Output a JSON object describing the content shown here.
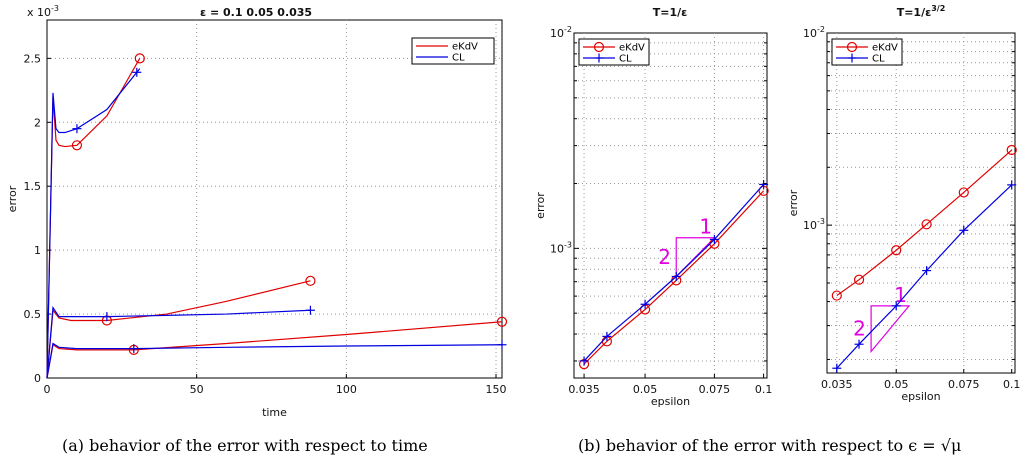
{
  "chart_data": [
    {
      "type": "line",
      "title": "ε  =  0.1       0.05      0.035",
      "xlabel": "time",
      "ylabel": "error",
      "y_multiplier": "x 10^-3",
      "xlim": [
        0,
        152
      ],
      "ylim": [
        0,
        2.8
      ],
      "xticks": [
        "0",
        "50",
        "100",
        "150"
      ],
      "yticks": [
        "0",
        "0.5",
        "1",
        "1.5",
        "2",
        "2.5"
      ],
      "grid": true,
      "legend": [
        "eKdV",
        "CL"
      ],
      "legend_position": "top-right",
      "series": [
        {
          "name": "eKdV",
          "color": "#e00000",
          "epsilon": "0.1",
          "x": [
            0,
            2,
            3,
            4,
            6,
            10,
            20,
            31
          ],
          "y": [
            0,
            2.2,
            1.86,
            1.82,
            1.81,
            1.82,
            2.05,
            2.5
          ]
        },
        {
          "name": "CL",
          "color": "#0000e0",
          "epsilon": "0.1",
          "x": [
            0,
            2,
            3,
            4,
            6,
            10,
            20,
            31
          ],
          "y": [
            0,
            2.23,
            1.95,
            1.92,
            1.92,
            1.95,
            2.1,
            2.42
          ]
        },
        {
          "name": "eKdV",
          "color": "#e00000",
          "epsilon": "0.05",
          "x": [
            0,
            2,
            4,
            8,
            20,
            40,
            60,
            88
          ],
          "y": [
            0,
            0.53,
            0.47,
            0.45,
            0.45,
            0.5,
            0.6,
            0.76
          ]
        },
        {
          "name": "CL",
          "color": "#0000e0",
          "epsilon": "0.05",
          "x": [
            0,
            2,
            4,
            8,
            20,
            40,
            60,
            88
          ],
          "y": [
            0,
            0.55,
            0.48,
            0.48,
            0.48,
            0.49,
            0.5,
            0.53
          ]
        },
        {
          "name": "eKdV",
          "color": "#e00000",
          "epsilon": "0.035",
          "x": [
            0,
            2,
            4,
            10,
            29,
            60,
            100,
            152
          ],
          "y": [
            0,
            0.26,
            0.23,
            0.22,
            0.22,
            0.27,
            0.34,
            0.44
          ]
        },
        {
          "name": "CL",
          "color": "#0000e0",
          "epsilon": "0.035",
          "x": [
            0,
            2,
            4,
            10,
            29,
            60,
            100,
            152
          ],
          "y": [
            0,
            0.27,
            0.24,
            0.23,
            0.23,
            0.24,
            0.25,
            0.26
          ]
        }
      ],
      "markers": [
        {
          "series": 0,
          "x": [
            10,
            31
          ]
        },
        {
          "series": 1,
          "x": [
            10,
            30
          ]
        },
        {
          "series": 2,
          "x": [
            20,
            88
          ]
        },
        {
          "series": 3,
          "x": [
            20,
            88
          ]
        },
        {
          "series": 4,
          "x": [
            29,
            152
          ]
        },
        {
          "series": 5,
          "x": [
            29,
            152
          ]
        }
      ]
    },
    {
      "type": "line",
      "title": "T=1/ε",
      "xlabel": "epsilon",
      "ylabel": "error",
      "x_scale": "log",
      "y_scale": "log",
      "xlim": [
        0.033,
        0.102
      ],
      "ylim": [
        0.00025,
        0.01
      ],
      "xticks": [
        "0.035",
        "0.05",
        "0.075",
        "0.1"
      ],
      "yticks": [
        "10^-3",
        "10^-2"
      ],
      "grid": true,
      "legend": [
        "eKdV",
        "CL"
      ],
      "legend_position": "top-left",
      "series": [
        {
          "name": "eKdV",
          "color": "#e00000",
          "marker": "circle",
          "x": [
            0.035,
            0.04,
            0.05,
            0.06,
            0.075,
            0.1
          ],
          "y": [
            0.00029,
            0.00037,
            0.00052,
            0.00071,
            0.00105,
            0.00185
          ]
        },
        {
          "name": "CL",
          "color": "#0000e0",
          "marker": "plus",
          "x": [
            0.035,
            0.04,
            0.05,
            0.06,
            0.075,
            0.1
          ],
          "y": [
            0.0003,
            0.00039,
            0.00055,
            0.00074,
            0.0011,
            0.00198
          ]
        }
      ],
      "slope_triangle": {
        "run_label": "1",
        "rise_label": "2",
        "x": [
          0.06,
          0.075
        ],
        "y_bottom": 0.00074,
        "y_top": 0.00112
      }
    },
    {
      "type": "line",
      "title": "T=1/ε^3/2",
      "xlabel": "epsilon",
      "ylabel": "error",
      "x_scale": "log",
      "y_scale": "log",
      "xlim": [
        0.033,
        0.102
      ],
      "ylim": [
        0.00017,
        0.01
      ],
      "xticks": [
        "0.035",
        "0.05",
        "0.075",
        "0.1"
      ],
      "yticks": [
        "10^-3",
        "10^-2"
      ],
      "grid": true,
      "legend": [
        "eKdV",
        "CL"
      ],
      "legend_position": "top-left",
      "series": [
        {
          "name": "eKdV",
          "color": "#e00000",
          "marker": "circle",
          "x": [
            0.035,
            0.04,
            0.05,
            0.06,
            0.075,
            0.1
          ],
          "y": [
            0.00043,
            0.00052,
            0.00074,
            0.00101,
            0.00148,
            0.00246
          ]
        },
        {
          "name": "CL",
          "color": "#0000e0",
          "marker": "plus",
          "x": [
            0.035,
            0.04,
            0.05,
            0.06,
            0.075,
            0.1
          ],
          "y": [
            0.00018,
            0.00024,
            0.00038,
            0.00058,
            0.00094,
            0.00162
          ]
        }
      ],
      "slope_triangle": {
        "run_label": "1",
        "rise_label": "2",
        "x": [
          0.043,
          0.054
        ],
        "y_bottom": 0.00022,
        "y_top": 0.00038
      }
    }
  ],
  "captions": {
    "a": "(a) behavior of the error with respect to time",
    "b": "(b) behavior of the error with respect to ϵ = √μ"
  }
}
